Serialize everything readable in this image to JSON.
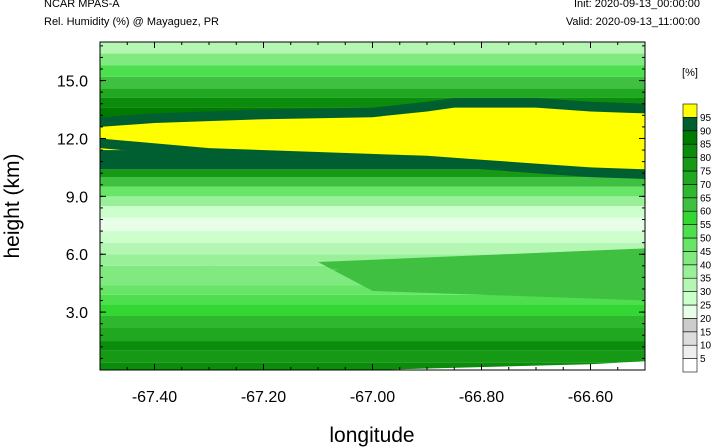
{
  "header": {
    "model": "NCAR MPAS-A",
    "variable": "Rel. Humidity (%) @ Mayaguez, PR",
    "init": "Init: 2020-09-13_00:00:00",
    "valid": "Valid: 2020-09-13_11:00:00"
  },
  "chart_data": {
    "type": "heatmap",
    "title": "",
    "xlabel": "longitude",
    "ylabel": "height (km)",
    "xlim": [
      -67.5,
      -66.5
    ],
    "ylim": [
      0,
      17.0
    ],
    "x_ticks": [
      -67.4,
      -67.2,
      -67.0,
      -66.8,
      -66.6
    ],
    "x_tick_labels": [
      "-67.40",
      "-67.20",
      "-67.00",
      "-66.80",
      "-66.60"
    ],
    "y_ticks": [
      3.0,
      6.0,
      9.0,
      12.0,
      15.0
    ],
    "y_tick_labels": [
      "3.0",
      "6.0",
      "9.0",
      "12.0",
      "15.0"
    ],
    "colorbar": {
      "unit": "[%]",
      "levels": [
        5,
        10,
        15,
        20,
        25,
        30,
        35,
        40,
        45,
        50,
        55,
        60,
        65,
        70,
        75,
        80,
        85,
        90,
        95
      ],
      "colors": [
        "#ffffff",
        "#eeeeee",
        "#dddddd",
        "#cccccc",
        "#e6ffe6",
        "#ccffcc",
        "#b3f7b3",
        "#99f099",
        "#80ea80",
        "#66e566",
        "#4ddf4d",
        "#33d633",
        "#40c040",
        "#2eb82e",
        "#20a820",
        "#169a16",
        "#0c8c0c",
        "#007a00",
        "#005f30",
        "#ffff00"
      ]
    },
    "bands": [
      {
        "y0": 0.0,
        "y1": 0.4,
        "level": 16
      },
      {
        "y0": 0.4,
        "y1": 1.0,
        "level": 15
      },
      {
        "y0": 1.0,
        "y1": 1.5,
        "level": 16
      },
      {
        "y0": 1.5,
        "y1": 2.2,
        "level": 14
      },
      {
        "y0": 2.2,
        "y1": 2.8,
        "level": 13
      },
      {
        "y0": 2.8,
        "y1": 3.4,
        "level": 11
      },
      {
        "y0": 3.4,
        "y1": 3.9,
        "level": 10
      },
      {
        "y0": 3.9,
        "y1": 4.4,
        "level": 9
      },
      {
        "y0": 4.4,
        "y1": 5.4,
        "level": 8
      },
      {
        "y0": 5.4,
        "y1": 6.0,
        "level": 7
      },
      {
        "y0": 6.0,
        "y1": 6.6,
        "level": 6
      },
      {
        "y0": 6.6,
        "y1": 7.2,
        "level": 5
      },
      {
        "y0": 7.2,
        "y1": 7.9,
        "level": 4
      },
      {
        "y0": 7.9,
        "y1": 8.5,
        "level": 5
      },
      {
        "y0": 8.5,
        "y1": 9.0,
        "level": 7
      },
      {
        "y0": 9.0,
        "y1": 9.5,
        "level": 9
      },
      {
        "y0": 9.5,
        "y1": 10.0,
        "level": 12
      },
      {
        "y0": 10.0,
        "y1": 10.4,
        "level": 15
      },
      {
        "y0": 10.4,
        "y1": 11.4,
        "level": 18
      },
      {
        "y0": 11.4,
        "y1": 12.6,
        "level": 19
      },
      {
        "y0": 12.6,
        "y1": 13.0,
        "level": 18
      },
      {
        "y0": 13.0,
        "y1": 13.6,
        "level": 17
      },
      {
        "y0": 13.6,
        "y1": 14.1,
        "level": 16
      },
      {
        "y0": 14.1,
        "y1": 14.6,
        "level": 14
      },
      {
        "y0": 14.6,
        "y1": 15.2,
        "level": 12
      },
      {
        "y0": 15.2,
        "y1": 15.8,
        "level": 10
      },
      {
        "y0": 15.8,
        "y1": 16.4,
        "level": 8
      },
      {
        "y0": 16.4,
        "y1": 17.0,
        "level": 6
      }
    ],
    "moist_layer_top": [
      [
        -67.5,
        12.6
      ],
      [
        -67.4,
        12.8
      ],
      [
        -67.2,
        13.0
      ],
      [
        -67.0,
        13.1
      ],
      [
        -66.9,
        13.4
      ],
      [
        -66.85,
        13.6
      ],
      [
        -66.7,
        13.6
      ],
      [
        -66.6,
        13.4
      ],
      [
        -66.5,
        13.3
      ]
    ],
    "moist_layer_bottom": [
      [
        -67.5,
        12.0
      ],
      [
        -67.3,
        11.5
      ],
      [
        -67.1,
        11.3
      ],
      [
        -66.9,
        11.1
      ],
      [
        -66.8,
        10.9
      ],
      [
        -66.7,
        10.7
      ],
      [
        -66.6,
        10.5
      ],
      [
        -66.5,
        10.4
      ]
    ],
    "dry_tongue": [
      [
        -67.5,
        5.2
      ],
      [
        -67.3,
        5.4
      ],
      [
        -67.06,
        5.2
      ],
      [
        -67.3,
        4.7
      ],
      [
        -67.5,
        4.5
      ]
    ],
    "mid_moist_patch": [
      [
        -67.1,
        5.6
      ],
      [
        -66.5,
        6.3
      ],
      [
        -66.5,
        3.6
      ],
      [
        -67.0,
        4.1
      ]
    ],
    "surface_dry_edge": [
      [
        -67.0,
        0.0
      ],
      [
        -66.6,
        0.3
      ],
      [
        -66.5,
        0.45
      ],
      [
        -66.5,
        0.0
      ]
    ]
  }
}
